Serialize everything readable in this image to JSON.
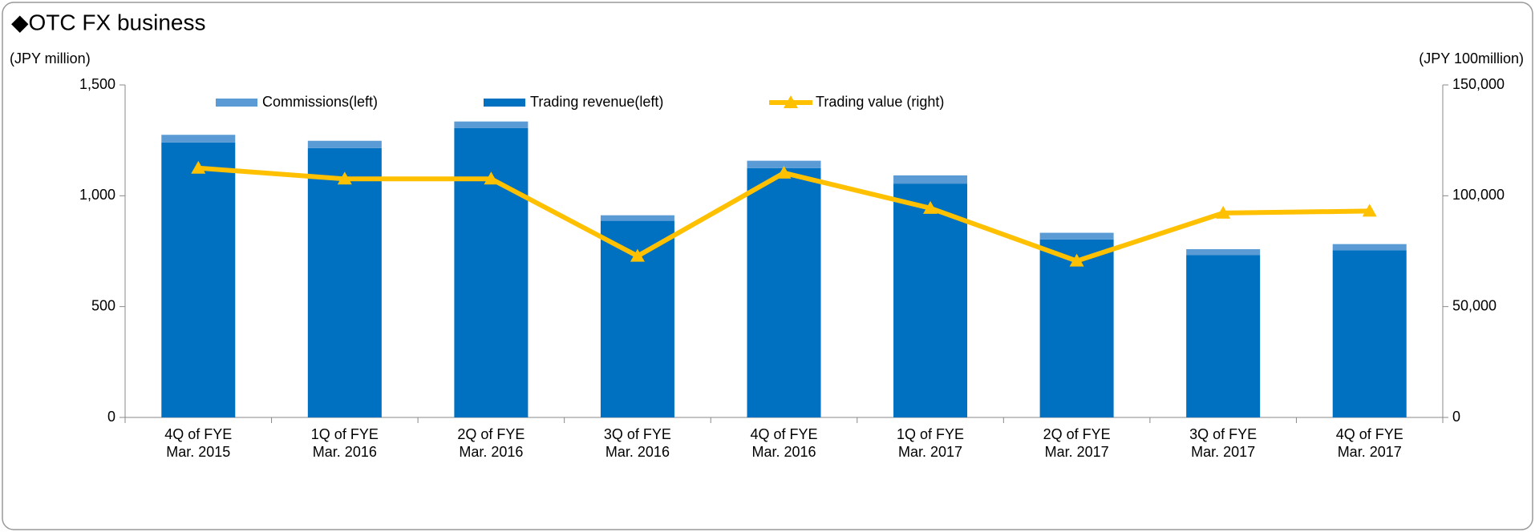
{
  "chart_data": {
    "type": "bar_line",
    "title": "◆OTC FX business",
    "y_label": "(JPY million)",
    "y2_label": "(JPY 100million)",
    "categories": [
      "4Q of FYE Mar. 2015",
      "1Q of FYE Mar. 2016",
      "2Q of FYE Mar. 2016",
      "3Q of FYE Mar. 2016",
      "4Q of FYE Mar. 2016",
      "1Q of FYE Mar. 2017",
      "2Q of FYE Mar. 2017",
      "3Q of FYE Mar. 2017",
      "4Q of FYE Mar. 2017"
    ],
    "series": [
      {
        "name": "Commissions(left)",
        "color": "#5b9bd5",
        "stack": true,
        "values": [
          35,
          33,
          30,
          25,
          33,
          37,
          30,
          27,
          28
        ]
      },
      {
        "name": "Trading revenue(left)",
        "color": "#0070c0",
        "stack": true,
        "values": [
          1240,
          1215,
          1305,
          887,
          1125,
          1055,
          803,
          732,
          754
        ]
      },
      {
        "name": "Trading value (right)",
        "color": "#ffc000",
        "axis": "y2",
        "values": [
          112500,
          107600,
          107600,
          72800,
          110300,
          94400,
          70600,
          92200,
          93100
        ]
      }
    ],
    "ylim": [
      0,
      1500
    ],
    "yticks": [
      0,
      500,
      {
        "value": 1000,
        "label": "1,000"
      },
      {
        "value": 1500,
        "label": "1,500"
      }
    ],
    "y2lim": [
      0,
      150000
    ],
    "y2ticks": [
      0,
      {
        "value": 50000,
        "label": "50,000"
      },
      {
        "value": 100000,
        "label": "100,000"
      },
      {
        "value": 150000,
        "label": "150,000"
      }
    ]
  }
}
